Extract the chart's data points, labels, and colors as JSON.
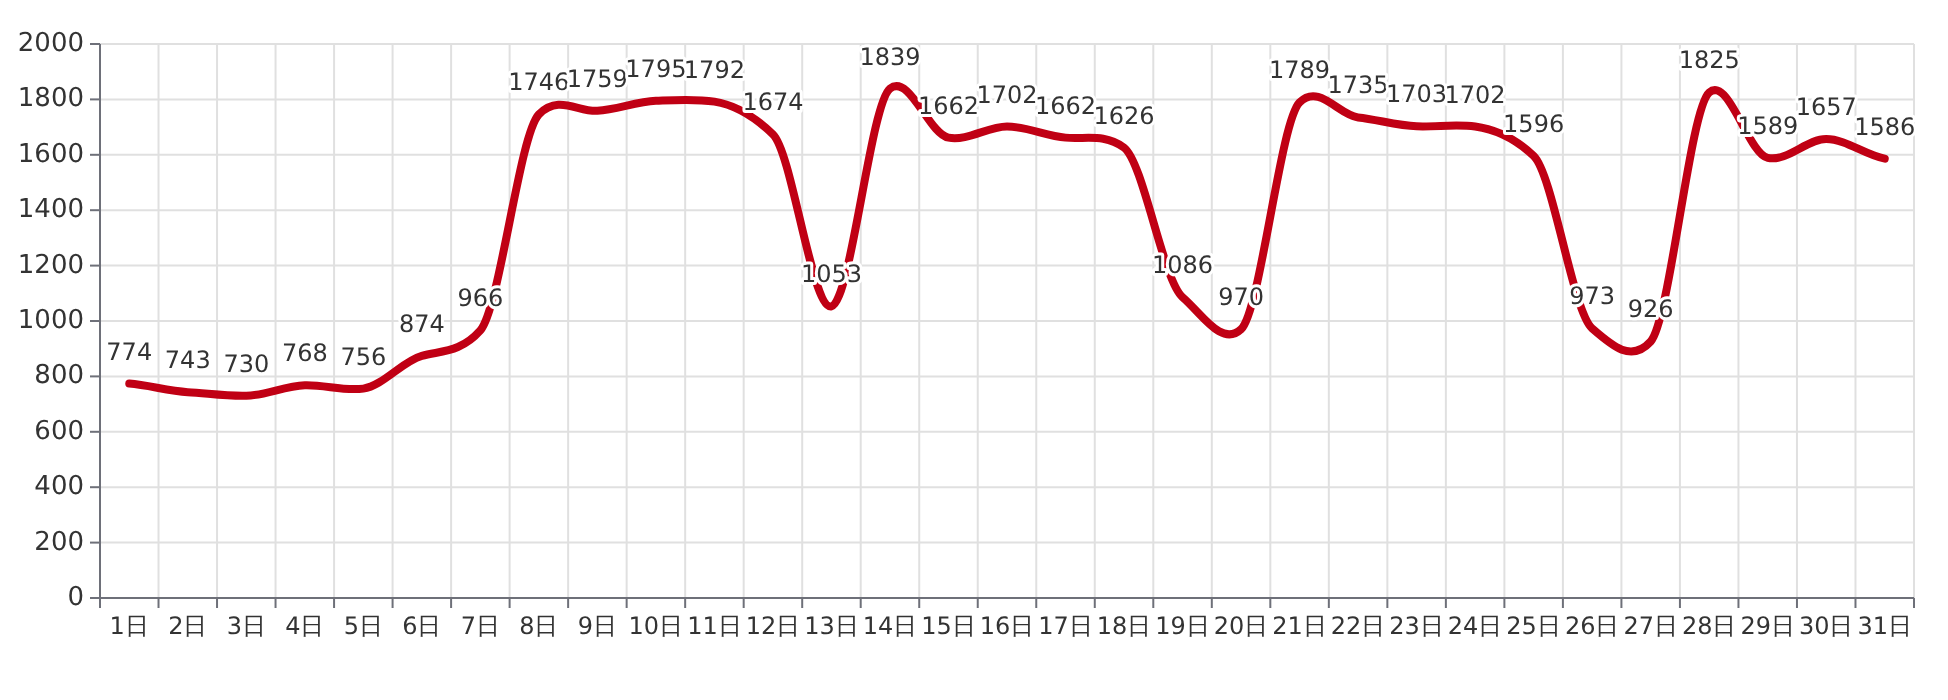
{
  "chart_data": {
    "type": "line",
    "categories": [
      "1日",
      "2日",
      "3日",
      "4日",
      "5日",
      "6日",
      "7日",
      "8日",
      "9日",
      "10日",
      "11日",
      "12日",
      "13日",
      "14日",
      "15日",
      "16日",
      "17日",
      "18日",
      "19日",
      "20日",
      "21日",
      "22日",
      "23日",
      "24日",
      "25日",
      "26日",
      "27日",
      "28日",
      "29日",
      "30日",
      "31日"
    ],
    "series": [
      {
        "color": "#c00014",
        "values": [
          774,
          743,
          730,
          768,
          756,
          874,
          966,
          1746,
          1759,
          1795,
          1792,
          1674,
          1053,
          1839,
          1662,
          1702,
          1662,
          1626,
          1086,
          970,
          1789,
          1735,
          1703,
          1702,
          1596,
          973,
          926,
          1825,
          1589,
          1657,
          1586
        ]
      }
    ],
    "ylim": [
      0,
      2000
    ],
    "yticks": [
      0,
      200,
      400,
      600,
      800,
      1000,
      1200,
      1400,
      1600,
      1800,
      2000
    ],
    "grid": true,
    "data_labels": true,
    "marker": "none",
    "line_style": "solid"
  }
}
